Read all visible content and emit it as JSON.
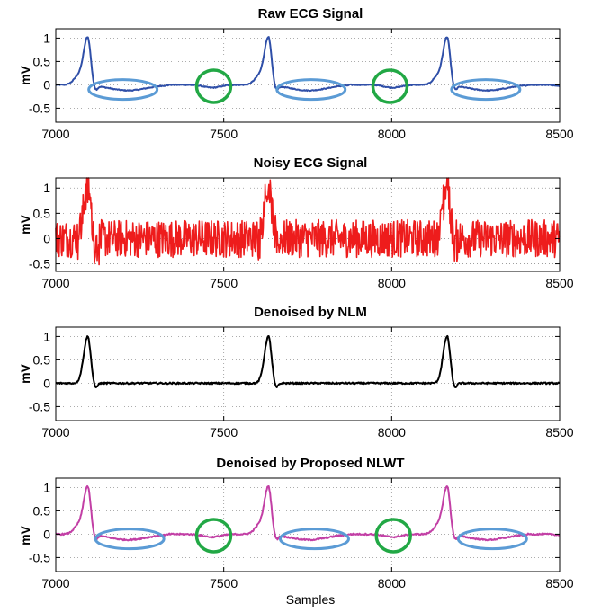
{
  "colors": {
    "raw": "#2f4fa8",
    "noisy": "#ee1c1c",
    "nlm": "#000000",
    "nlwt": "#c23fa5",
    "ellipse": "#5b9bd5",
    "circle": "#22a845",
    "grid": "#909090"
  },
  "chart_data": [
    {
      "type": "line",
      "title": "Raw ECG Signal",
      "xlabel": "",
      "ylabel": "mV",
      "xlim": [
        7000,
        8500
      ],
      "ylim": [
        -0.8,
        1.2
      ],
      "xticks": [
        7000,
        7500,
        8000,
        8500
      ],
      "yticks": [
        1,
        0.5,
        0,
        -0.5
      ],
      "grid": true,
      "signal": "raw",
      "peaks": [
        7095,
        7633,
        8165
      ],
      "annotations": {
        "ellipses": [
          {
            "cx": 7200,
            "cy": -0.1
          },
          {
            "cx": 7760,
            "cy": -0.1
          },
          {
            "cx": 8280,
            "cy": -0.1
          }
        ],
        "circles": [
          {
            "cx": 7470,
            "cy": -0.03
          },
          {
            "cx": 7995,
            "cy": -0.03
          }
        ]
      }
    },
    {
      "type": "line",
      "title": "Noisy ECG Signal",
      "xlabel": "",
      "ylabel": "mV",
      "xlim": [
        7000,
        8500
      ],
      "ylim": [
        -0.65,
        1.2
      ],
      "xticks": [
        7000,
        7500,
        8000,
        8500
      ],
      "yticks": [
        1,
        0.5,
        0,
        -0.5
      ],
      "grid": true,
      "signal": "noisy",
      "peaks": [
        7095,
        7633,
        8165
      ],
      "annotations": {
        "ellipses": [],
        "circles": []
      }
    },
    {
      "type": "line",
      "title": "Denoised by NLM",
      "xlabel": "",
      "ylabel": "mV",
      "xlim": [
        7000,
        8500
      ],
      "ylim": [
        -0.8,
        1.2
      ],
      "xticks": [
        7000,
        7500,
        8000,
        8500
      ],
      "yticks": [
        1,
        0.5,
        0,
        -0.5
      ],
      "grid": true,
      "signal": "nlm",
      "peaks": [
        7095,
        7633,
        8165
      ],
      "annotations": {
        "ellipses": [],
        "circles": []
      }
    },
    {
      "type": "line",
      "title": "Denoised by Proposed NLWT",
      "xlabel": "Samples",
      "ylabel": "mV",
      "xlim": [
        7000,
        8500
      ],
      "ylim": [
        -0.8,
        1.2
      ],
      "xticks": [
        7000,
        7500,
        8000,
        8500
      ],
      "yticks": [
        1,
        0.5,
        0,
        -0.5
      ],
      "grid": true,
      "signal": "nlwt",
      "peaks": [
        7095,
        7633,
        8165
      ],
      "annotations": {
        "ellipses": [
          {
            "cx": 7220,
            "cy": -0.1
          },
          {
            "cx": 7770,
            "cy": -0.1
          },
          {
            "cx": 8300,
            "cy": -0.1
          }
        ],
        "circles": [
          {
            "cx": 7470,
            "cy": -0.03
          },
          {
            "cx": 8005,
            "cy": -0.03
          }
        ]
      }
    }
  ]
}
